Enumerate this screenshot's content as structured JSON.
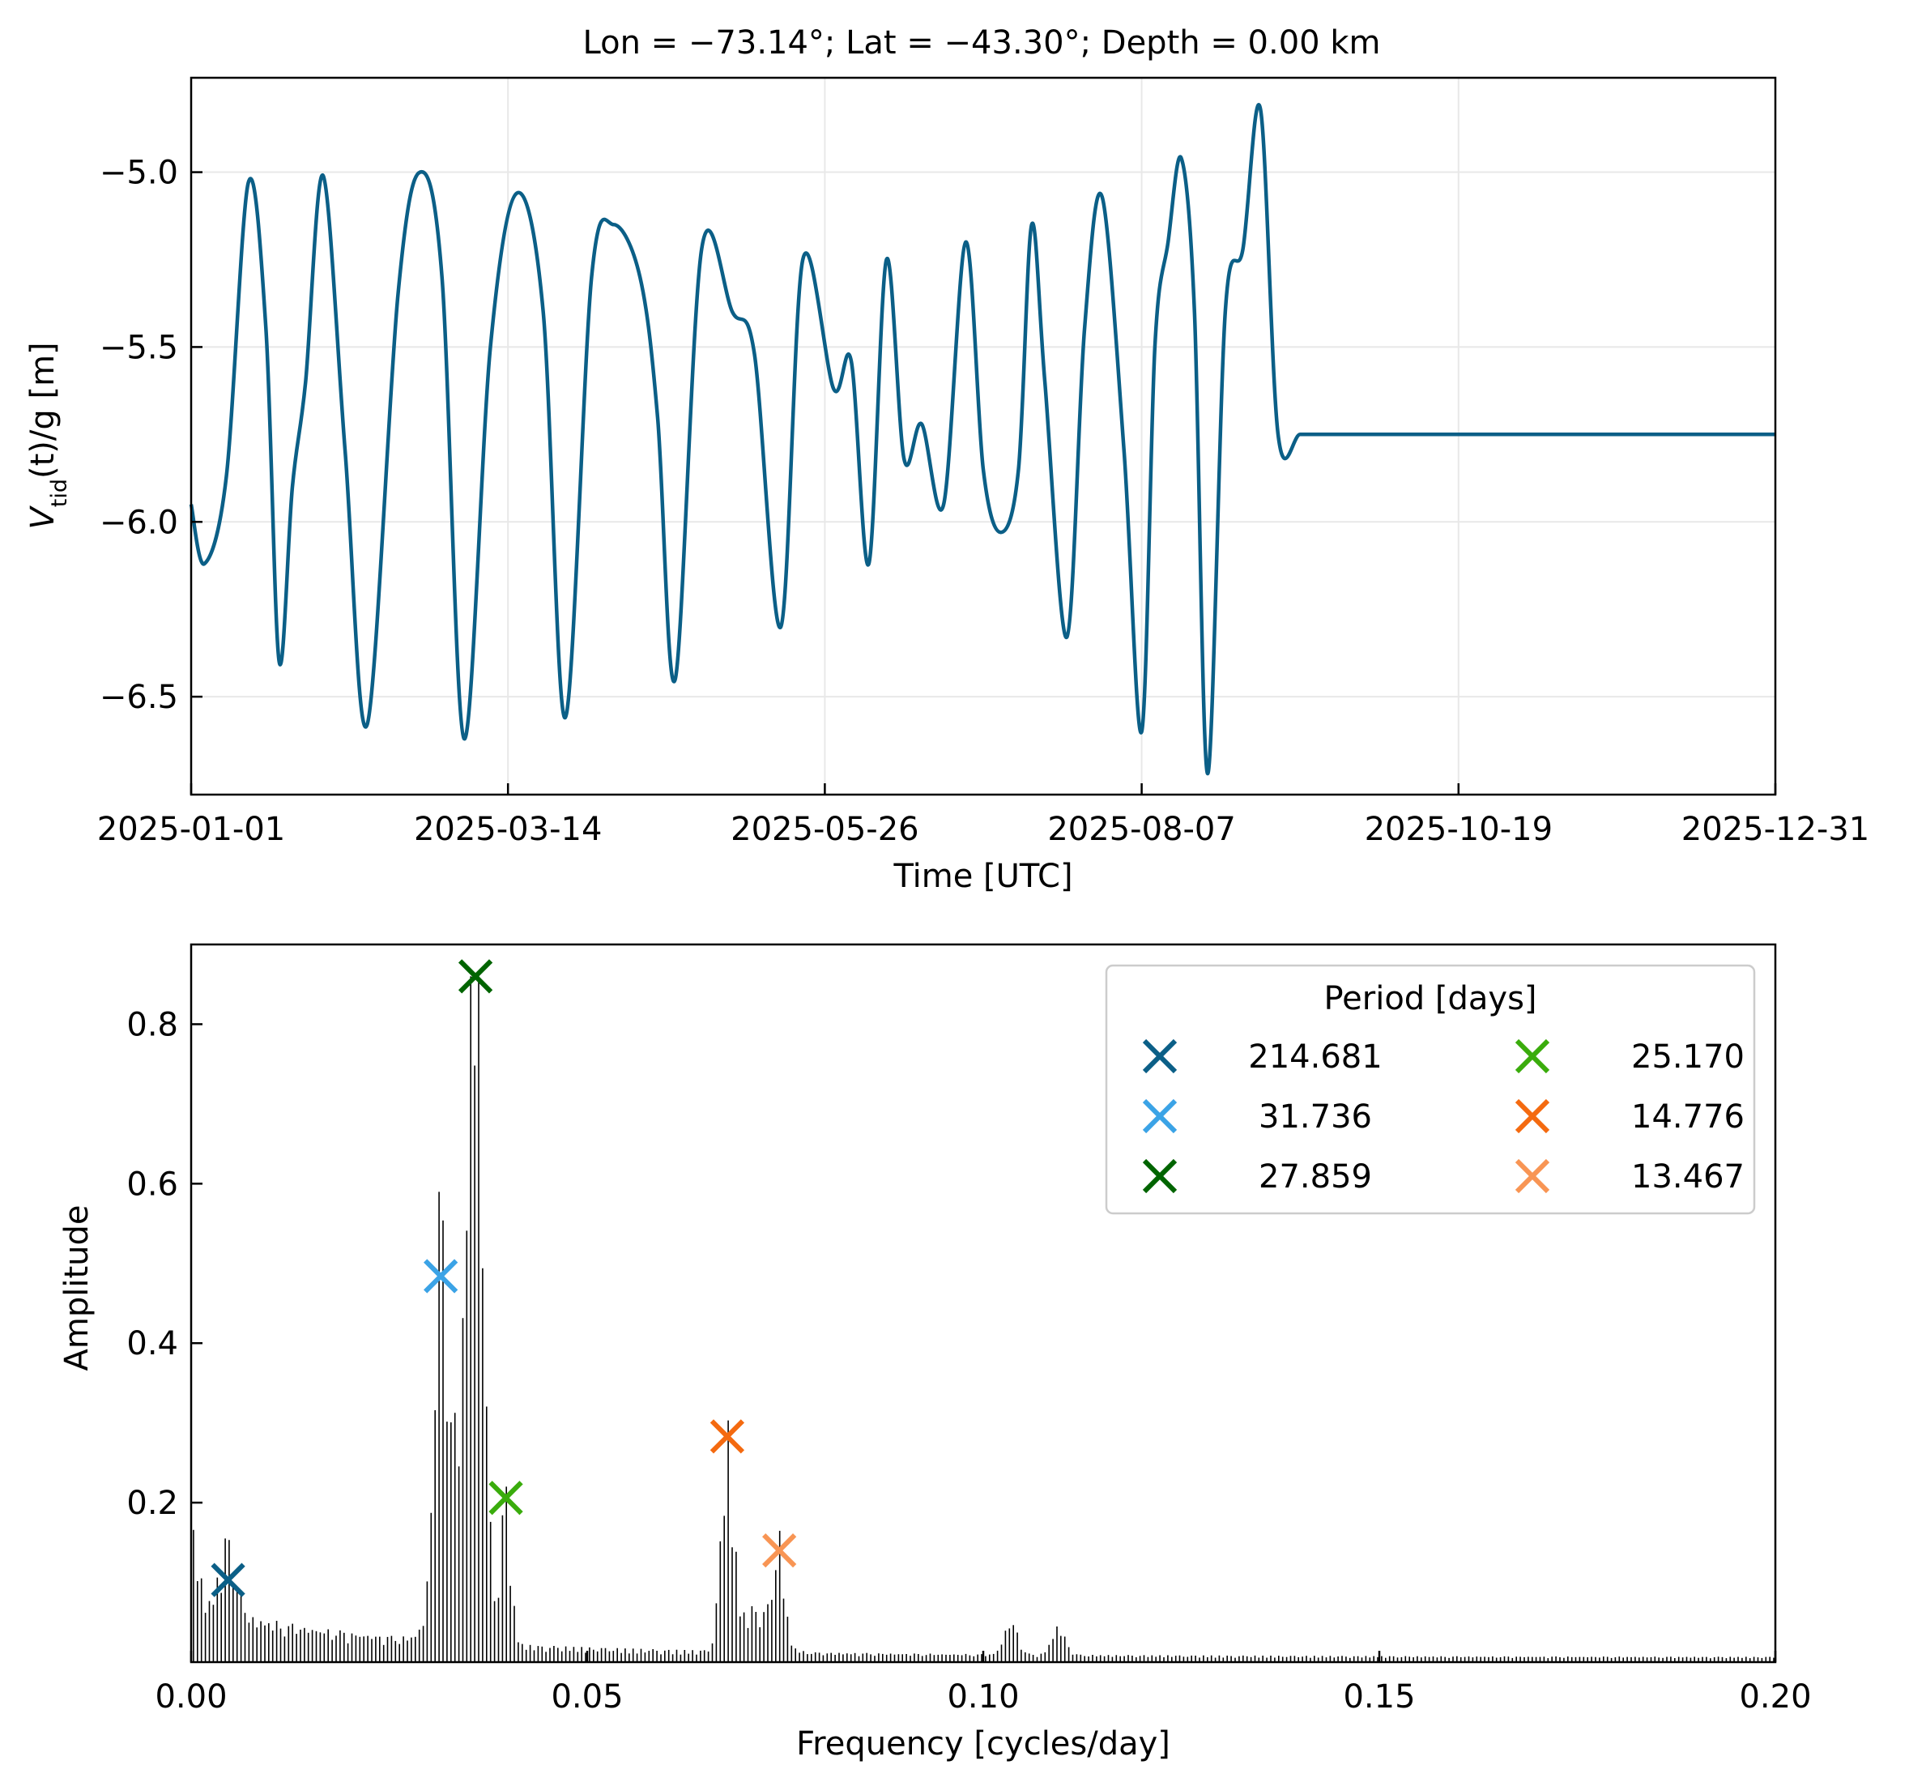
{
  "chart_data": [
    {
      "type": "line",
      "title": "Lon $=-73.14°$; Lat $=-43.30°$; Depth $=0.00$ km",
      "title_display": "Lon  = −73.14°; Lat  = −43.30°; Depth  = 0.00 km",
      "xlabel": "Time [UTC]",
      "ylabel": "V_tid(t)/g [m]",
      "ylabel_parts": {
        "V": "V",
        "sub": "tid",
        "rest": "(t)/g [m]"
      },
      "xlim": [
        "2025-01-01",
        "2025-12-31"
      ],
      "ylim": [
        -6.78,
        -4.73
      ],
      "grid": true,
      "x_ticks": [
        "2025-01-01",
        "2025-03-14",
        "2025-05-26",
        "2025-08-07",
        "2025-10-19",
        "2025-12-31"
      ],
      "x_tick_days": [
        0,
        72,
        144,
        216,
        288,
        360
      ],
      "y_ticks": [
        -5.0,
        -5.5,
        -6.0,
        -6.5
      ],
      "y_tick_labels": [
        "−5.0",
        "−5.5",
        "−6.0",
        "−6.5"
      ],
      "line_color": "#0b5f87",
      "series": [
        {
          "x": [
            "2025-01-01",
            "2025-01-04",
            "2025-01-09",
            "2025-01-14",
            "2025-01-18",
            "2025-01-21",
            "2025-01-24",
            "2025-01-27",
            "2025-01-31",
            "2025-02-05",
            "2025-02-10",
            "2025-02-17",
            "2025-02-22",
            "2025-02-27",
            "2025-03-04",
            "2025-03-10",
            "2025-03-16",
            "2025-03-22",
            "2025-03-27",
            "2025-04-02",
            "2025-04-07",
            "2025-04-13",
            "2025-04-17",
            "2025-04-21",
            "2025-04-27",
            "2025-05-04",
            "2025-05-09",
            "2025-05-15",
            "2025-05-20",
            "2025-05-27",
            "2025-05-31",
            "2025-06-04",
            "2025-06-08",
            "2025-06-12",
            "2025-06-16",
            "2025-06-21",
            "2025-06-26",
            "2025-06-30",
            "2025-07-04",
            "2025-07-08",
            "2025-07-11",
            "2025-07-14",
            "2025-07-19",
            "2025-07-23",
            "2025-07-27",
            "2025-08-01",
            "2025-08-05",
            "2025-08-08",
            "2025-08-11",
            "2025-08-14",
            "2025-08-17",
            "2025-08-20",
            "2025-08-24",
            "2025-08-28",
            "2025-09-01",
            "2025-09-05",
            "2025-09-10",
            "2025-09-15",
            "2025-09-19",
            "2025-09-25",
            "2025-10-01",
            "2025-10-06",
            "2025-10-10",
            "2025-10-15",
            "2025-10-20",
            "2025-10-26",
            "2025-11-02",
            "2025-11-07",
            "2025-11-12",
            "2025-11-17",
            "2025-11-24",
            "2025-11-30",
            "2025-12-04",
            "2025-12-09",
            "2025-12-13",
            "2025-12-16",
            "2025-12-19",
            "2025-12-23",
            "2025-12-27",
            "2025-12-31"
          ],
          "y": [
            -5.95,
            -6.12,
            -5.87,
            -5.03,
            -5.45,
            -6.4,
            -5.9,
            -5.6,
            -5.01,
            -5.8,
            -6.58,
            -5.35,
            -5.0,
            -5.3,
            -6.62,
            -5.5,
            -5.06,
            -5.4,
            -6.56,
            -5.3,
            -5.15,
            -5.3,
            -5.7,
            -6.45,
            -5.22,
            -5.4,
            -5.52,
            -6.3,
            -5.25,
            -5.62,
            -5.54,
            -6.12,
            -5.25,
            -5.82,
            -5.72,
            -5.95,
            -5.2,
            -5.85,
            -6.03,
            -5.85,
            -5.15,
            -5.6,
            -6.33,
            -5.45,
            -5.07,
            -5.8,
            -6.6,
            -5.5,
            -5.2,
            -4.96,
            -5.4,
            -6.72,
            -5.4,
            -5.22,
            -4.82,
            -5.75,
            -5.75,
            -5.75,
            -5.75,
            -5.75,
            -5.75,
            -5.75,
            -5.75,
            -5.75,
            -5.75,
            -5.75,
            -5.75,
            -5.75,
            -5.75,
            -5.75,
            -5.75,
            -5.75,
            -5.75,
            -5.75,
            -5.75,
            -5.75,
            -5.75,
            -5.75,
            -5.75,
            -5.75
          ]
        }
      ],
      "series_days": [
        0,
        3,
        8,
        13,
        17,
        20,
        23,
        26,
        30,
        35,
        40,
        47,
        52,
        57,
        62,
        68,
        74,
        80,
        85,
        91,
        96,
        102,
        106,
        110,
        116,
        123,
        128,
        134,
        139,
        146,
        150,
        154,
        158,
        162,
        166,
        171,
        176,
        180,
        184,
        188,
        191,
        194,
        199,
        203,
        207,
        212,
        216,
        219,
        222,
        225,
        228,
        231,
        235,
        239,
        243,
        247,
        252,
        257,
        261,
        267,
        273,
        278,
        282,
        287,
        292,
        298,
        305,
        310,
        315,
        320,
        327,
        333,
        337,
        342,
        346,
        349,
        352,
        356,
        358,
        360
      ]
    },
    {
      "type": "bar",
      "title": "",
      "xlabel": "Frequency [cycles/day]",
      "ylabel": "Amplitude",
      "xlim": [
        0.0,
        0.2
      ],
      "ylim": [
        0.0,
        0.9
      ],
      "grid": false,
      "x_ticks": [
        0.0,
        0.05,
        0.1,
        0.15,
        0.2
      ],
      "x_tick_labels": [
        "0.00",
        "0.05",
        "0.10",
        "0.15",
        "0.20"
      ],
      "y_ticks": [
        0.2,
        0.4,
        0.6,
        0.8
      ],
      "y_tick_labels": [
        "0.2",
        "0.4",
        "0.6",
        "0.8"
      ],
      "bar_color": "#000000",
      "frequency_step": 0.0005,
      "peaks": [
        {
          "period": "214.681",
          "frequency": 0.00466,
          "amplitude": 0.103,
          "color": "#0b5f87"
        },
        {
          "period": "31.736",
          "frequency": 0.03151,
          "amplitude": 0.484,
          "color": "#3ba3e6"
        },
        {
          "period": "27.859",
          "frequency": 0.0359,
          "amplitude": 0.86,
          "color": "#006400"
        },
        {
          "period": "25.170",
          "frequency": 0.03973,
          "amplitude": 0.206,
          "color": "#3aac0c"
        },
        {
          "period": "14.776",
          "frequency": 0.06768,
          "amplitude": 0.283,
          "color": "#f46a10"
        },
        {
          "period": "13.467",
          "frequency": 0.07425,
          "amplitude": 0.14,
          "color": "#f89554"
        }
      ],
      "legend": {
        "title": "Period [days]",
        "placement": "upper right",
        "columns": 2,
        "order": [
          0,
          1,
          2,
          3,
          4,
          5
        ]
      }
    }
  ]
}
